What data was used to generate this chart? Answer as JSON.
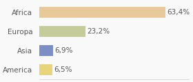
{
  "categories": [
    "Africa",
    "Europa",
    "Asia",
    "America"
  ],
  "values": [
    63.4,
    23.2,
    6.9,
    6.5
  ],
  "labels": [
    "63,4%",
    "23,2%",
    "6,9%",
    "6,5%"
  ],
  "bar_colors": [
    "#e8c99a",
    "#c5cc9a",
    "#7b8fc4",
    "#e8d47a"
  ],
  "background_color": "#f9f9f9",
  "xlim": [
    0,
    75
  ],
  "label_fontsize": 7.5,
  "category_fontsize": 7.5
}
